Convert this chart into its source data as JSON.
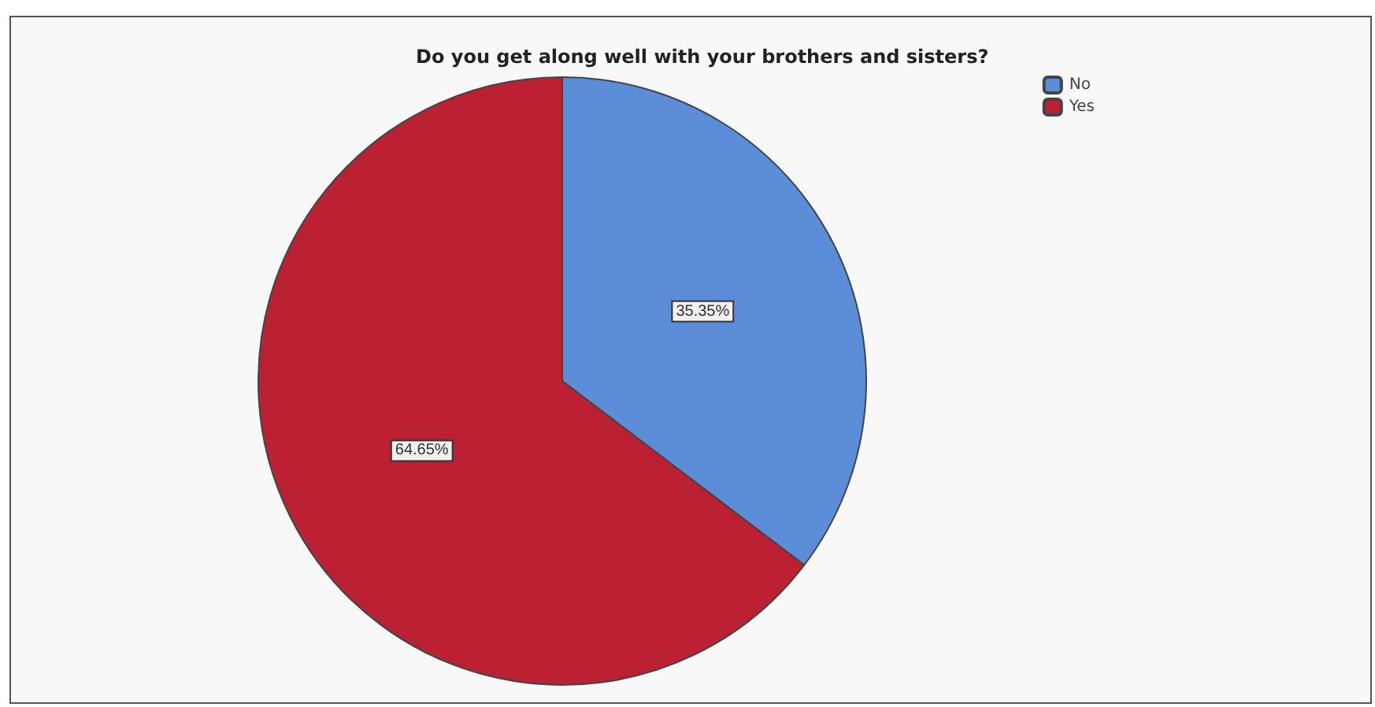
{
  "chart_data": {
    "type": "pie",
    "title": "Do you get along well with your brothers and sisters?",
    "categories": [
      "No",
      "Yes"
    ],
    "values": [
      35.35,
      64.65
    ],
    "colors": [
      "#5b8dd9",
      "#bc2033"
    ],
    "value_labels": [
      "35.35%",
      "64.65%"
    ],
    "legend": "top right"
  }
}
